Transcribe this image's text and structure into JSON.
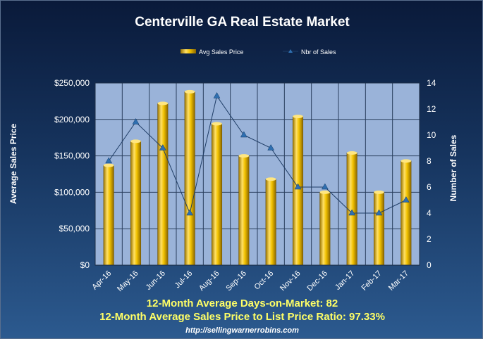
{
  "title": "Centerville GA Real Estate Market",
  "legend": {
    "bars_label": "Avg Sales Price",
    "line_label": "Nbr of Sales"
  },
  "stats": {
    "days_on_market": "12-Month Average Days-on-Market: 82",
    "price_ratio": "12-Month Average Sales Price to List Price Ratio: 97.33%"
  },
  "footer_url": "http://sellingwarnerrobins.com",
  "colors": {
    "bar": "#e6b400",
    "line": "#1f3d66",
    "marker": "#2f6fb0",
    "plot_bg": "#9ab3d9"
  },
  "chart_data": {
    "type": "bar",
    "title": "Centerville GA Real Estate Market",
    "categories": [
      "Apr-16",
      "May-16",
      "Jun-16",
      "Jul-16",
      "Aug-16",
      "Sep-16",
      "Oct-16",
      "Nov-16",
      "Dec-16",
      "Jan-17",
      "Feb-17",
      "Mar-17"
    ],
    "series": [
      {
        "name": "Avg Sales Price",
        "kind": "bar",
        "axis": "left",
        "values": [
          137000,
          170000,
          222000,
          238000,
          194000,
          150000,
          118000,
          204000,
          100000,
          154000,
          100000,
          143000
        ]
      },
      {
        "name": "Nbr of Sales",
        "kind": "line",
        "axis": "right",
        "values": [
          8,
          11,
          9,
          4,
          13,
          10,
          9,
          6,
          6,
          4,
          4,
          5
        ]
      }
    ],
    "ylabel": "Average Sales Price",
    "y2label": "Number of Sales",
    "ylim": [
      0,
      250000
    ],
    "y2lim": [
      0,
      14
    ],
    "yticks": [
      "$0",
      "$50,000",
      "$100,000",
      "$150,000",
      "$200,000",
      "$250,000"
    ],
    "y2ticks": [
      "0",
      "2",
      "4",
      "6",
      "8",
      "10",
      "12",
      "14"
    ],
    "grid": true,
    "legend_position": "top"
  }
}
